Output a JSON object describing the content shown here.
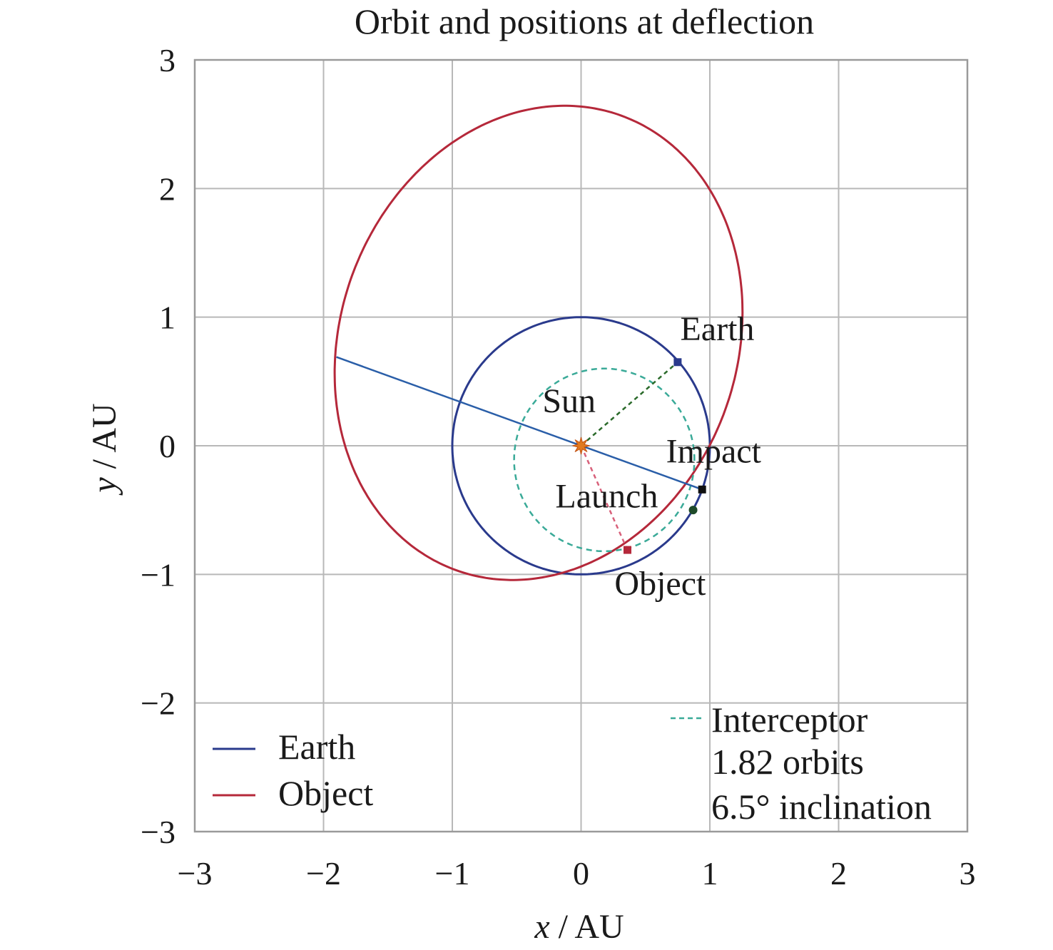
{
  "chart_data": {
    "type": "line",
    "title": "Orbit and positions at deflection",
    "xlabel": "x / AU",
    "ylabel": "y / AU",
    "xlim": [
      -3,
      3
    ],
    "ylim": [
      -3,
      3
    ],
    "x_ticks": [
      -3,
      -2,
      -1,
      0,
      1,
      2,
      3
    ],
    "y_ticks": [
      -3,
      -2,
      -1,
      0,
      1,
      2,
      3
    ],
    "x_tick_labels": [
      "−3",
      "−2",
      "−1",
      "0",
      "1",
      "2",
      "3"
    ],
    "y_tick_labels": [
      "−3",
      "−2",
      "−1",
      "0",
      "1",
      "2",
      "3"
    ],
    "grid": true,
    "series": [
      {
        "name": "Earth",
        "color": "#2a3a8c",
        "style": "solid",
        "kind": "ellipse",
        "center": [
          0,
          0
        ],
        "semi_axis_x": 1.0,
        "semi_axis_y": 1.0,
        "rotation_deg": 0
      },
      {
        "name": "Object",
        "color": "#b5283a",
        "style": "solid",
        "kind": "ellipse",
        "center": [
          -0.33,
          0.8
        ],
        "semi_axis_x": 1.88,
        "semi_axis_y": 1.54,
        "rotation_deg": 70
      },
      {
        "name": "Interceptor",
        "color": "#3aaa98",
        "style": "dashed",
        "kind": "ellipse",
        "center": [
          0.18,
          -0.11
        ],
        "semi_axis_x": 0.7,
        "semi_axis_y": 0.71,
        "rotation_deg": 0
      }
    ],
    "lines": [
      {
        "name": "apsidal-line",
        "from": [
          -1.9,
          0.69
        ],
        "to": [
          0.94,
          -0.34
        ],
        "color": "#2a5ea8",
        "style": "solid"
      },
      {
        "name": "sun-earth",
        "from": [
          0,
          0
        ],
        "to": [
          0.75,
          0.65
        ],
        "color": "#2a6a2a",
        "style": "dashed"
      },
      {
        "name": "sun-object",
        "from": [
          0,
          0
        ],
        "to": [
          0.36,
          -0.81
        ],
        "color": "#d8607a",
        "style": "dashed"
      }
    ],
    "points": [
      {
        "name": "Sun",
        "x": 0.0,
        "y": 0.0,
        "color": "#e07a20",
        "marker": "star"
      },
      {
        "name": "Earth",
        "x": 0.75,
        "y": 0.65,
        "color": "#2a3a8c",
        "marker": "square"
      },
      {
        "name": "Impact",
        "x": 0.94,
        "y": -0.34,
        "color": "#111111",
        "marker": "square"
      },
      {
        "name": "Launch",
        "x": 0.87,
        "y": -0.5,
        "color": "#1f4a2a",
        "marker": "circle"
      },
      {
        "name": "Object",
        "x": 0.36,
        "y": -0.81,
        "color": "#b5283a",
        "marker": "square"
      }
    ],
    "annotations": [
      {
        "text": "Earth",
        "x": 0.77,
        "y": 0.82
      },
      {
        "text": "Sun",
        "x": -0.3,
        "y": 0.26
      },
      {
        "text": "Impact",
        "x": 0.66,
        "y": -0.13
      },
      {
        "text": "Launch",
        "x": -0.2,
        "y": -0.48
      },
      {
        "text": "Object",
        "x": 0.26,
        "y": -1.16
      }
    ],
    "legend": {
      "placement": "lower-left",
      "entries": [
        {
          "label": "Earth",
          "color": "#2a3a8c",
          "style": "solid"
        },
        {
          "label": "Object",
          "color": "#b5283a",
          "style": "solid"
        }
      ]
    },
    "legend2": {
      "placement": "lower-right",
      "entries": [
        {
          "label": "Interceptor",
          "color": "#3aaa98",
          "style": "dashed"
        }
      ],
      "notes": [
        "1.82 orbits",
        "6.5° inclination"
      ]
    }
  }
}
